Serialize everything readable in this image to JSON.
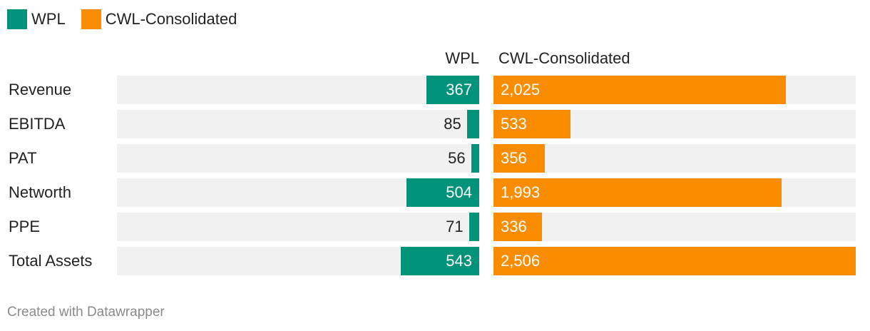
{
  "legend": [
    {
      "label": "WPL",
      "color": "#00937a"
    },
    {
      "label": "CWL-Consolidated",
      "color": "#fa8c00"
    }
  ],
  "columns": {
    "left": "WPL",
    "right": "CWL-Consolidated"
  },
  "chart_data": {
    "type": "bar",
    "orientation": "horizontal-split",
    "title": "",
    "categories": [
      "Revenue",
      "EBITDA",
      "PAT",
      "Networth",
      "PPE",
      "Total Assets"
    ],
    "series": [
      {
        "name": "WPL",
        "values": [
          367,
          85,
          56,
          504,
          71,
          543
        ],
        "labels": [
          "367",
          "85",
          "56",
          "504",
          "71",
          "543"
        ],
        "color": "#00937a"
      },
      {
        "name": "CWL-Consolidated",
        "values": [
          2025,
          533,
          356,
          1993,
          336,
          2506
        ],
        "labels": [
          "2,025",
          "533",
          "356",
          "1,993",
          "336",
          "2,506"
        ],
        "color": "#fa8c00"
      }
    ],
    "xlim_left": [
      0,
      2506
    ],
    "xlim_right": [
      0,
      2506
    ],
    "legend_position": "top-left",
    "grid": false
  },
  "footer": "Created with Datawrapper"
}
